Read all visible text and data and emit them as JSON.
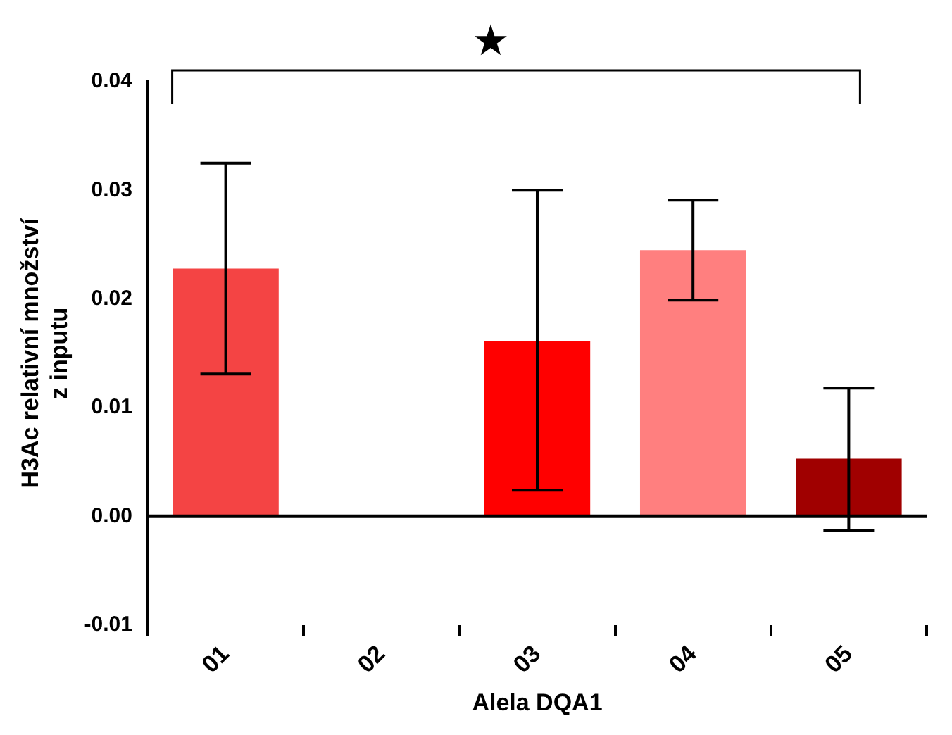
{
  "chart_data": {
    "type": "bar",
    "categories": [
      "01",
      "02",
      "03",
      "04",
      "05"
    ],
    "values": [
      0.0228,
      null,
      0.0161,
      0.0245,
      0.0053
    ],
    "colors": [
      "#f44444",
      "#f44444",
      "#ff0000",
      "#ff7f7f",
      "#a00000"
    ],
    "errors": [
      [
        0.0131,
        0.0325
      ],
      null,
      [
        0.0024,
        0.03
      ],
      [
        0.0199,
        0.0291
      ],
      [
        -0.0013,
        0.0118
      ]
    ],
    "ylim": [
      -0.01,
      0.04
    ],
    "yticks": [
      {
        "value": -0.01,
        "label": "-0.01"
      },
      {
        "value": 0,
        "label": "0.00"
      },
      {
        "value": 0.01,
        "label": "0.01"
      },
      {
        "value": 0.02,
        "label": "0.02"
      },
      {
        "value": 0.03,
        "label": "0.03"
      },
      {
        "value": 0.04,
        "label": "0.04"
      }
    ],
    "xlabel": "Alela DQA1",
    "ylabel": "H3Ac relativní množství\nz inputu",
    "annotations": [
      "★"
    ],
    "legend": false
  }
}
